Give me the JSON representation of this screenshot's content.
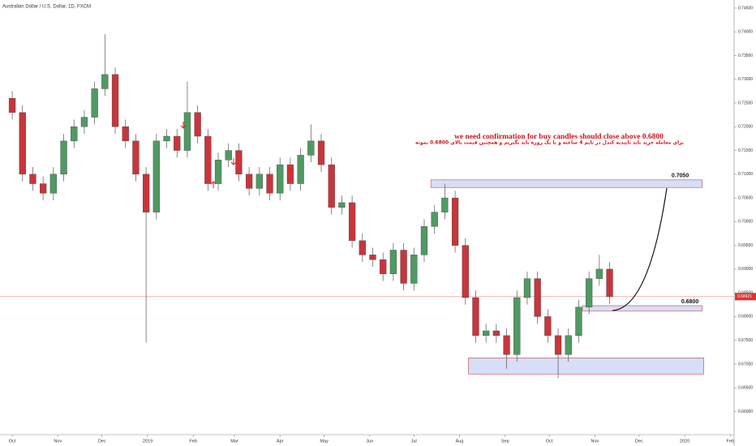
{
  "chart_data": {
    "type": "candlestick",
    "title": "Australian Dollar / U.S. Dollar, 1D, FXCM",
    "up_color": "#4f9a62",
    "down_color": "#c9353b",
    "xlim": [
      -8.3,
      490.6
    ],
    "ylim": [
      0.6553,
      0.7467
    ],
    "xticks": [
      {
        "value": 0,
        "label": "Oct"
      },
      {
        "value": 31,
        "label": "Nov"
      },
      {
        "value": 61,
        "label": "Dec"
      },
      {
        "value": 92,
        "label": "2019"
      },
      {
        "value": 123,
        "label": "Feb"
      },
      {
        "value": 151,
        "label": "Mar"
      },
      {
        "value": 182,
        "label": "Apr"
      },
      {
        "value": 212,
        "label": "May"
      },
      {
        "value": 243,
        "label": "Jun"
      },
      {
        "value": 273,
        "label": "Jul"
      },
      {
        "value": 304,
        "label": "Aug"
      },
      {
        "value": 335,
        "label": "Sep"
      },
      {
        "value": 365,
        "label": "Oct"
      },
      {
        "value": 396,
        "label": "Nov"
      },
      {
        "value": 426,
        "label": "Dec"
      },
      {
        "value": 457,
        "label": "2020"
      },
      {
        "value": 488,
        "label": "Feb"
      }
    ],
    "yticks": [
      {
        "value": 0.745,
        "label": "0.74500"
      },
      {
        "value": 0.74,
        "label": "0.74000"
      },
      {
        "value": 0.735,
        "label": "0.73500"
      },
      {
        "value": 0.73,
        "label": "0.73000"
      },
      {
        "value": 0.725,
        "label": "0.72500"
      },
      {
        "value": 0.72,
        "label": "0.72000"
      },
      {
        "value": 0.715,
        "label": "0.71500"
      },
      {
        "value": 0.71,
        "label": "0.71000"
      },
      {
        "value": 0.705,
        "label": "0.70500"
      },
      {
        "value": 0.7,
        "label": "0.70000"
      },
      {
        "value": 0.695,
        "label": "0.69500"
      },
      {
        "value": 0.69,
        "label": "0.69000"
      },
      {
        "value": 0.685,
        "label": "0.68500"
      },
      {
        "value": 0.68,
        "label": "0.68000"
      },
      {
        "value": 0.675,
        "label": "0.67500"
      },
      {
        "value": 0.67,
        "label": "0.67000"
      },
      {
        "value": 0.665,
        "label": "0.66500"
      },
      {
        "value": 0.66,
        "label": "0.66000"
      }
    ],
    "x": [
      0,
      7,
      14,
      21,
      28,
      35,
      42,
      49,
      56,
      63,
      70,
      77,
      84,
      91,
      98,
      105,
      112,
      119,
      126,
      133,
      140,
      147,
      154,
      161,
      168,
      175,
      182,
      189,
      196,
      203,
      210,
      217,
      224,
      231,
      238,
      245,
      252,
      259,
      266,
      273,
      280,
      287,
      294,
      301,
      308,
      315,
      322,
      329,
      336,
      343,
      350,
      357,
      364,
      371,
      378,
      385,
      392,
      399,
      406
    ],
    "open": [
      0.726,
      0.723,
      0.71,
      0.708,
      0.706,
      0.71,
      0.717,
      0.72,
      0.722,
      0.728,
      0.731,
      0.72,
      0.717,
      0.71,
      0.702,
      0.717,
      0.718,
      0.715,
      0.723,
      0.718,
      0.708,
      0.713,
      0.715,
      0.71,
      0.707,
      0.71,
      0.706,
      0.712,
      0.708,
      0.714,
      0.717,
      0.712,
      0.703,
      0.704,
      0.696,
      0.693,
      0.692,
      0.689,
      0.694,
      0.687,
      0.693,
      0.699,
      0.702,
      0.705,
      0.695,
      0.684,
      0.676,
      0.677,
      0.676,
      0.672,
      0.684,
      0.688,
      0.68,
      0.676,
      0.672,
      0.676,
      0.682,
      0.688,
      0.69
    ],
    "high": [
      0.7275,
      0.7245,
      0.7115,
      0.7095,
      0.7115,
      0.7185,
      0.7215,
      0.7235,
      0.7295,
      0.7395,
      0.7325,
      0.7215,
      0.7185,
      0.7115,
      0.7185,
      0.7195,
      0.7195,
      0.7295,
      0.7245,
      0.7195,
      0.7145,
      0.7165,
      0.7165,
      0.7115,
      0.7115,
      0.7115,
      0.7135,
      0.7135,
      0.7155,
      0.7205,
      0.7185,
      0.7135,
      0.7055,
      0.7055,
      0.6975,
      0.6945,
      0.6935,
      0.6955,
      0.6955,
      0.6945,
      0.7005,
      0.7035,
      0.708,
      0.7065,
      0.6965,
      0.6855,
      0.6785,
      0.6785,
      0.6775,
      0.6855,
      0.6895,
      0.6895,
      0.6815,
      0.6775,
      0.6775,
      0.6835,
      0.6895,
      0.693,
      0.6915
    ],
    "low": [
      0.7215,
      0.7085,
      0.7065,
      0.7045,
      0.7045,
      0.7085,
      0.7155,
      0.7185,
      0.7205,
      0.7265,
      0.7185,
      0.7155,
      0.7085,
      0.6745,
      0.7005,
      0.7155,
      0.7135,
      0.7135,
      0.7165,
      0.7065,
      0.7065,
      0.7115,
      0.7085,
      0.7055,
      0.7055,
      0.7045,
      0.7045,
      0.7065,
      0.7065,
      0.7125,
      0.7105,
      0.7015,
      0.7015,
      0.6945,
      0.6915,
      0.6905,
      0.6875,
      0.6875,
      0.6855,
      0.6855,
      0.6915,
      0.6975,
      0.7005,
      0.6935,
      0.6825,
      0.6745,
      0.6745,
      0.6745,
      0.669,
      0.6705,
      0.6825,
      0.6785,
      0.6745,
      0.667,
      0.6705,
      0.6745,
      0.6805,
      0.6865,
      0.6827
    ],
    "close": [
      0.723,
      0.71,
      0.708,
      0.706,
      0.71,
      0.717,
      0.72,
      0.722,
      0.728,
      0.731,
      0.72,
      0.717,
      0.71,
      0.702,
      0.717,
      0.718,
      0.715,
      0.723,
      0.718,
      0.708,
      0.713,
      0.715,
      0.71,
      0.707,
      0.71,
      0.706,
      0.712,
      0.708,
      0.714,
      0.717,
      0.712,
      0.703,
      0.704,
      0.696,
      0.693,
      0.692,
      0.689,
      0.694,
      0.687,
      0.693,
      0.699,
      0.702,
      0.705,
      0.695,
      0.684,
      0.676,
      0.677,
      0.676,
      0.672,
      0.684,
      0.688,
      0.68,
      0.676,
      0.672,
      0.676,
      0.682,
      0.688,
      0.69,
      0.6842
    ],
    "last_price": 0.68421,
    "zones": [
      {
        "x": [
          284.5,
          469
        ],
        "top": 0.7088,
        "bottom": 0.7072,
        "label": "0.7050"
      },
      {
        "x": [
          387.5,
          469
        ],
        "top": 0.6823,
        "bottom": 0.6812,
        "label": "0.6800"
      },
      {
        "x": [
          310,
          470
        ],
        "top": 0.6713,
        "bottom": 0.6679
      }
    ],
    "annotations": [
      "we need confirmation for buy candles should close above 0.6800",
      "براي معامله خريد بايد تاييديه كندل در تايم 4 ساعته و يا يک روزه بايد بگيريم و همچنين  قيمت بالاي 0.6800 بمونه"
    ]
  }
}
